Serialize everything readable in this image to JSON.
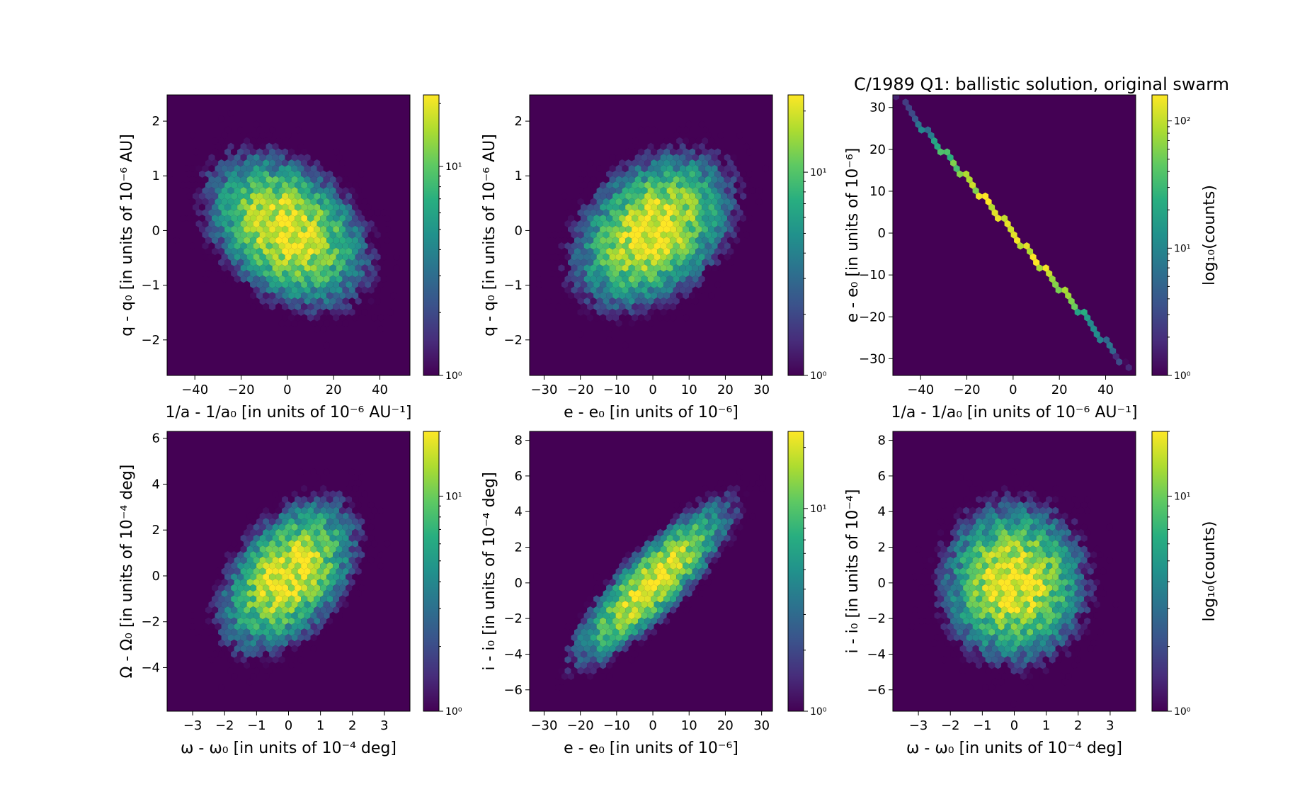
{
  "figure": {
    "title": "C/1989 Q1:  ballistic solution, original swarm",
    "colormap": "viridis",
    "background": "#ffffff",
    "panel_background": "#440154"
  },
  "chart_data": [
    {
      "type": "heatmap",
      "hexbin": true,
      "xlabel": "1/a - 1/a₀ [in units of 10⁻⁶ AU⁻¹]",
      "ylabel": "q - q₀ [in units of 10⁻⁶ AU]",
      "xlim": [
        -52,
        53
      ],
      "ylim": [
        -2.65,
        2.48
      ],
      "xticks": [
        -40,
        -20,
        0,
        20,
        40
      ],
      "xticklabels": [
        "−40",
        "−20",
        "0",
        "20",
        "40"
      ],
      "yticks": [
        -2,
        -1,
        0,
        1,
        2
      ],
      "yticklabels": [
        "−2",
        "−1",
        "0",
        "1",
        "2"
      ],
      "colorbar": {
        "scale": "log",
        "min": 1,
        "max": 22,
        "ticks": [
          1,
          10
        ],
        "ticklabels": [
          "10⁰",
          "10¹"
        ],
        "label": ""
      },
      "distribution": {
        "x_mean": 0,
        "x_std": 16,
        "y_mean": 0,
        "y_std": 0.65,
        "correlation": -0.35,
        "peak_count": 22
      }
    },
    {
      "type": "heatmap",
      "hexbin": true,
      "xlabel": "e - e₀ [in units of 10⁻⁶]",
      "ylabel": "q - q₀ [in units of 10⁻⁶ AU]",
      "xlim": [
        -34,
        33
      ],
      "ylim": [
        -2.65,
        2.48
      ],
      "xticks": [
        -30,
        -20,
        -10,
        0,
        10,
        20,
        30
      ],
      "xticklabels": [
        "−30",
        "−20",
        "−10",
        "0",
        "10",
        "20",
        "30"
      ],
      "yticks": [
        -2,
        -1,
        0,
        1,
        2
      ],
      "yticklabels": [
        "−2",
        "−1",
        "0",
        "1",
        "2"
      ],
      "colorbar": {
        "scale": "log",
        "min": 1,
        "max": 24,
        "ticks": [
          1,
          10
        ],
        "ticklabels": [
          "10⁰",
          "10¹"
        ],
        "label": ""
      },
      "distribution": {
        "x_mean": 0,
        "x_std": 10,
        "y_mean": 0,
        "y_std": 0.65,
        "correlation": 0.35,
        "peak_count": 24
      }
    },
    {
      "type": "heatmap",
      "hexbin": true,
      "xlabel": "1/a - 1/a₀ [in units of 10⁻⁶ AU⁻¹]",
      "ylabel": "e - e₀ [in units of 10⁻⁶]",
      "xlim": [
        -52,
        53
      ],
      "ylim": [
        -34,
        33
      ],
      "xticks": [
        -40,
        -20,
        0,
        20,
        40
      ],
      "xticklabels": [
        "−40",
        "−20",
        "0",
        "20",
        "40"
      ],
      "yticks": [
        -30,
        -20,
        -10,
        0,
        10,
        20,
        30
      ],
      "yticklabels": [
        "−30",
        "−20",
        "−10",
        "0",
        "10",
        "20",
        "30"
      ],
      "colorbar": {
        "scale": "log",
        "min": 1,
        "max": 160,
        "ticks": [
          1,
          10,
          100
        ],
        "ticklabels": [
          "10⁰",
          "10¹",
          "10²"
        ],
        "label": "log₁₀(counts)"
      },
      "distribution": {
        "line": {
          "x0": -50,
          "y0": 32.5,
          "x1": 50,
          "y1": -32.5
        },
        "x_std": 16,
        "peak_count": 160
      }
    },
    {
      "type": "heatmap",
      "hexbin": true,
      "xlabel": "ω - ω₀ [in units of 10⁻⁴ deg]",
      "ylabel": "Ω - Ω₀ [in units of 10⁻⁴ deg]",
      "xlim": [
        -3.8,
        3.8
      ],
      "ylim": [
        -5.9,
        6.3
      ],
      "xticks": [
        -3,
        -2,
        -1,
        0,
        1,
        2,
        3
      ],
      "xticklabels": [
        "−3",
        "−2",
        "−1",
        "0",
        "1",
        "2",
        "3"
      ],
      "yticks": [
        -4,
        -2,
        0,
        2,
        4,
        6
      ],
      "yticklabels": [
        "−4",
        "−2",
        "0",
        "2",
        "4",
        "6"
      ],
      "colorbar": {
        "scale": "log",
        "min": 1,
        "max": 20,
        "ticks": [
          1,
          10
        ],
        "ticklabels": [
          "10⁰",
          "10¹"
        ],
        "label": ""
      },
      "distribution": {
        "x_mean": 0,
        "x_std": 1.0,
        "y_mean": 0,
        "y_std": 1.55,
        "correlation": 0.45,
        "peak_count": 20
      }
    },
    {
      "type": "heatmap",
      "hexbin": true,
      "xlabel": "e - e₀ [in units of 10⁻⁶]",
      "ylabel": "i - i₀ [in units of 10⁻⁴ deg]",
      "xlim": [
        -34,
        33
      ],
      "ylim": [
        -7.2,
        8.5
      ],
      "xticks": [
        -30,
        -20,
        -10,
        0,
        10,
        20,
        30
      ],
      "xticklabels": [
        "−30",
        "−20",
        "−10",
        "0",
        "10",
        "20",
        "30"
      ],
      "yticks": [
        -6,
        -4,
        -2,
        0,
        2,
        4,
        6,
        8
      ],
      "yticklabels": [
        "−6",
        "−4",
        "−2",
        "0",
        "2",
        "4",
        "6",
        "8"
      ],
      "colorbar": {
        "scale": "log",
        "min": 1,
        "max": 24,
        "ticks": [
          1,
          10
        ],
        "ticklabels": [
          "10⁰",
          "10¹"
        ],
        "label": ""
      },
      "distribution": {
        "x_mean": 0,
        "x_std": 10,
        "y_mean": 0,
        "y_std": 2.1,
        "correlation": 0.85,
        "peak_count": 24
      }
    },
    {
      "type": "heatmap",
      "hexbin": true,
      "xlabel": "ω - ω₀ [in units of 10⁻⁴ deg]",
      "ylabel": "i - i₀ [in units of 10⁻⁴]",
      "xlim": [
        -3.8,
        3.8
      ],
      "ylim": [
        -7.2,
        8.5
      ],
      "xticks": [
        -3,
        -2,
        -1,
        0,
        1,
        2,
        3
      ],
      "xticklabels": [
        "−3",
        "−2",
        "−1",
        "0",
        "1",
        "2",
        "3"
      ],
      "yticks": [
        -6,
        -4,
        -2,
        0,
        2,
        4,
        6,
        8
      ],
      "yticklabels": [
        "−6",
        "−4",
        "−2",
        "0",
        "2",
        "4",
        "6",
        "8"
      ],
      "colorbar": {
        "scale": "log",
        "min": 1,
        "max": 20,
        "ticks": [
          1,
          10
        ],
        "ticklabels": [
          "10⁰",
          "10¹"
        ],
        "label": "log₁₀(counts)"
      },
      "distribution": {
        "x_mean": 0,
        "x_std": 1.05,
        "y_mean": 0,
        "y_std": 2.1,
        "correlation": 0.0,
        "peak_count": 20
      }
    }
  ]
}
